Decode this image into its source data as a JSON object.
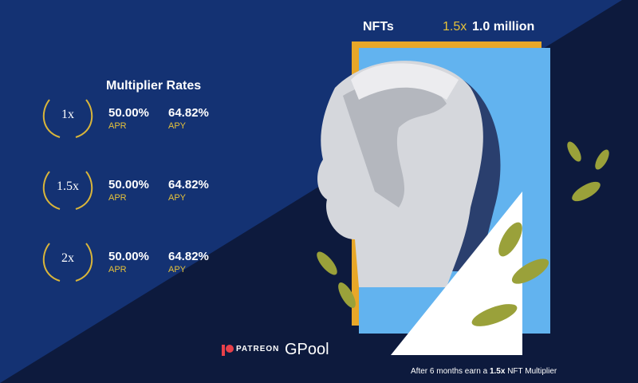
{
  "header": {
    "label": "NFTs",
    "multiplier": "1.5x",
    "amount": "1.0 million"
  },
  "rates": {
    "title": "Multiplier Rates",
    "rows": [
      {
        "multiplier": "1x",
        "apr": "50.00%",
        "apr_label": "APR",
        "apy": "64.82%",
        "apy_label": "APY"
      },
      {
        "multiplier": "1.5x",
        "apr": "50.00%",
        "apr_label": "APR",
        "apy": "64.82%",
        "apy_label": "APY"
      },
      {
        "multiplier": "2x",
        "apr": "50.00%",
        "apr_label": "APR",
        "apy": "64.82%",
        "apy_label": "APY"
      }
    ]
  },
  "sponsors": {
    "patreon": "PATREON",
    "gpool": "GPool"
  },
  "footer": {
    "line1": [
      "After 6 months earn a ",
      "1.5x",
      " NFT Multiplier"
    ]
  }
}
